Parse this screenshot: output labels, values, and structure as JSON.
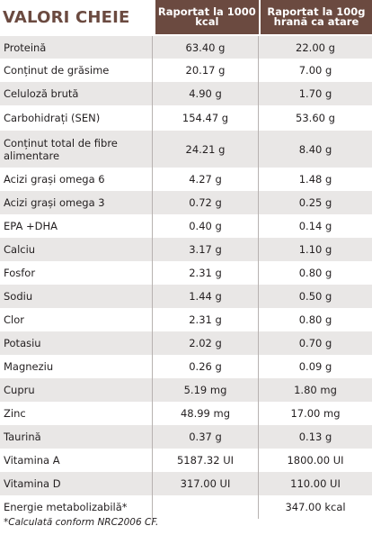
{
  "title": "VALORI CHEIE",
  "headers": {
    "col1": "Raportat la 1000 kcal",
    "col2": "Raportat la 100g hrană ca atare"
  },
  "rows": [
    {
      "label": "Proteină",
      "v1": "63.40 g",
      "v2": "22.00 g"
    },
    {
      "label": "Conținut de grăsime",
      "v1": "20.17 g",
      "v2": "7.00 g"
    },
    {
      "label": "Celuloză brută",
      "v1": "4.90 g",
      "v2": "1.70 g"
    },
    {
      "label": "Carbohidrați (SEN)",
      "v1": "154.47 g",
      "v2": "53.60 g"
    },
    {
      "label": "Conținut total de fibre alimentare",
      "v1": "24.21 g",
      "v2": "8.40 g"
    },
    {
      "label": "Acizi grași omega 6",
      "v1": "4.27 g",
      "v2": "1.48 g"
    },
    {
      "label": "Acizi grași omega 3",
      "v1": "0.72 g",
      "v2": "0.25 g"
    },
    {
      "label": "EPA +DHA",
      "v1": "0.40 g",
      "v2": "0.14 g"
    },
    {
      "label": "Calciu",
      "v1": "3.17 g",
      "v2": "1.10 g"
    },
    {
      "label": "Fosfor",
      "v1": "2.31 g",
      "v2": "0.80 g"
    },
    {
      "label": "Sodiu",
      "v1": "1.44 g",
      "v2": "0.50 g"
    },
    {
      "label": "Clor",
      "v1": "2.31 g",
      "v2": "0.80 g"
    },
    {
      "label": "Potasiu",
      "v1": "2.02 g",
      "v2": "0.70 g"
    },
    {
      "label": "Magneziu",
      "v1": "0.26 g",
      "v2": "0.09 g"
    },
    {
      "label": "Cupru",
      "v1": "5.19 mg",
      "v2": "1.80 mg"
    },
    {
      "label": "Zinc",
      "v1": "48.99 mg",
      "v2": "17.00 mg"
    },
    {
      "label": "Taurină",
      "v1": "0.37 g",
      "v2": "0.13 g"
    },
    {
      "label": "Vitamina A",
      "v1": "5187.32 UI",
      "v2": "1800.00 UI"
    },
    {
      "label": "Vitamina D",
      "v1": "317.00 UI",
      "v2": "110.00 UI"
    },
    {
      "label": "Energie metabolizabilă*",
      "v1": "",
      "v2": "347.00 kcal"
    }
  ],
  "footnote": "*Calculată conform NRC2006 CF."
}
